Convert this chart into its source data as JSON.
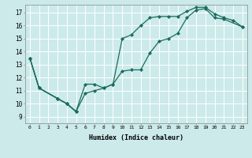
{
  "xlabel": "Humidex (Indice chaleur)",
  "xlim": [
    -0.5,
    23.5
  ],
  "ylim": [
    8.5,
    17.6
  ],
  "xticks": [
    0,
    1,
    2,
    3,
    4,
    5,
    6,
    7,
    8,
    9,
    10,
    11,
    12,
    13,
    14,
    15,
    16,
    17,
    18,
    19,
    20,
    21,
    22,
    23
  ],
  "yticks": [
    9,
    10,
    11,
    12,
    13,
    14,
    15,
    16,
    17
  ],
  "bg_color": "#cceaea",
  "grid_color": "#ffffff",
  "line_color": "#1a6b5e",
  "series1_x": [
    0,
    1,
    3,
    4,
    5
  ],
  "series1_y": [
    13.5,
    11.2,
    10.4,
    10.0,
    9.4
  ],
  "series2_x": [
    0,
    1,
    3,
    4,
    5,
    6,
    7,
    8,
    9,
    10,
    11,
    12,
    13,
    14,
    15,
    16,
    17,
    18,
    19,
    20,
    21,
    23
  ],
  "series2_y": [
    13.5,
    11.2,
    10.4,
    10.0,
    9.4,
    10.8,
    11.0,
    11.2,
    11.5,
    12.5,
    12.6,
    12.6,
    13.9,
    14.8,
    15.0,
    15.4,
    16.6,
    17.2,
    17.3,
    16.6,
    16.5,
    15.9
  ],
  "series3_x": [
    0,
    1,
    3,
    4,
    5,
    6,
    7,
    8,
    9,
    10,
    11,
    12,
    13,
    14,
    15,
    16,
    17,
    18,
    19,
    20,
    21,
    22,
    23
  ],
  "series3_y": [
    13.5,
    11.2,
    10.4,
    10.0,
    9.4,
    11.5,
    11.5,
    11.2,
    11.5,
    15.0,
    15.3,
    16.0,
    16.6,
    16.7,
    16.7,
    16.7,
    17.1,
    17.4,
    17.4,
    16.9,
    16.6,
    16.4,
    15.9
  ]
}
